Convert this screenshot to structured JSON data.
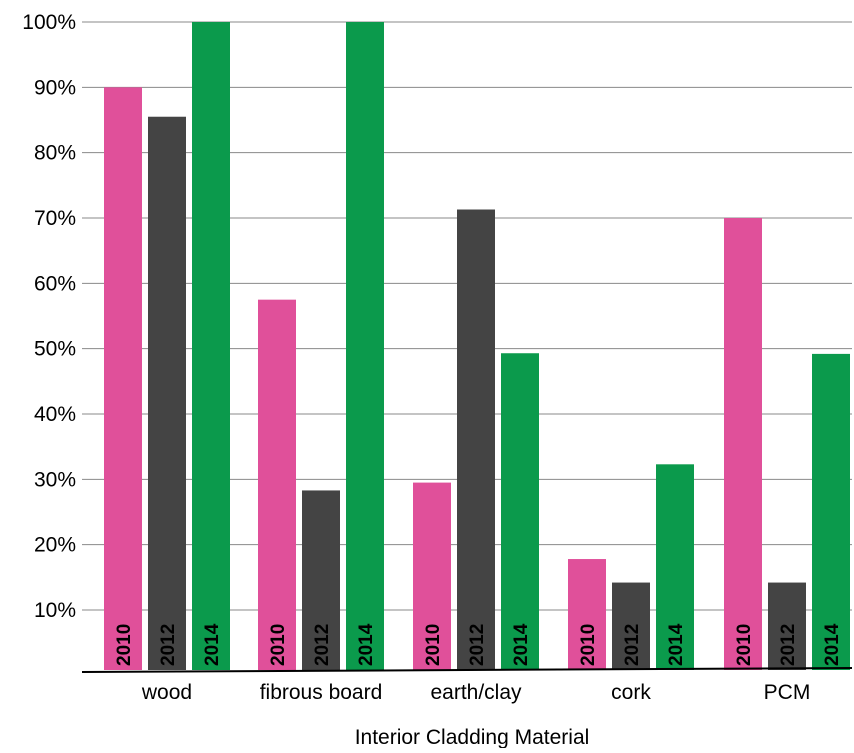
{
  "chart_data": {
    "type": "bar",
    "title": "",
    "xlabel": "Interior Cladding Material",
    "ylabel": "",
    "categories": [
      "wood",
      "fibrous board",
      "earth/clay",
      "cork",
      "PCM"
    ],
    "series": [
      {
        "name": "2010",
        "values": [
          90,
          57.5,
          29.5,
          17.8,
          70
        ],
        "color": "#e0509a"
      },
      {
        "name": "2012",
        "values": [
          85.5,
          28.3,
          71.3,
          14.2,
          14.2
        ],
        "color": "#444444"
      },
      {
        "name": "2014",
        "values": [
          100,
          100,
          49.3,
          32.3,
          49.2
        ],
        "color": "#0b9a4c"
      }
    ],
    "ylim": [
      10,
      100
    ],
    "yticks": [
      "10%",
      "20%",
      "30%",
      "40%",
      "50%",
      "60%",
      "70%",
      "80%",
      "90%",
      "100%"
    ],
    "grid": true,
    "legend": "none; series names printed inside the bars"
  }
}
